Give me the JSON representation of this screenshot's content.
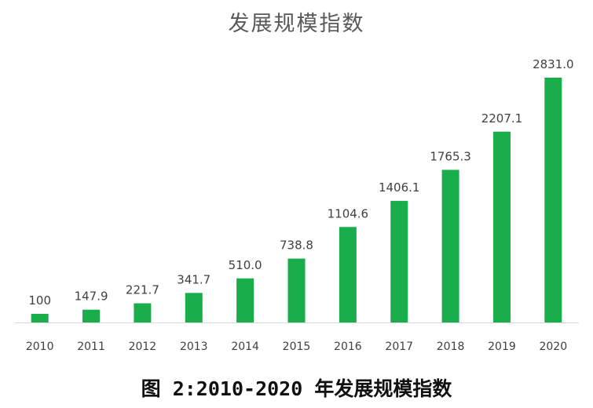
{
  "chart_data": {
    "type": "bar",
    "title": "发展规模指数",
    "categories": [
      "2010",
      "2011",
      "2012",
      "2013",
      "2014",
      "2015",
      "2016",
      "2017",
      "2018",
      "2019",
      "2020"
    ],
    "values": [
      100,
      147.9,
      221.7,
      341.7,
      510.0,
      738.8,
      1104.6,
      1406.1,
      1765.3,
      2207.1,
      2831.0
    ],
    "data_labels": [
      "100",
      "147.9",
      "221.7",
      "341.7",
      "510.0",
      "738.8",
      "1104.6",
      "1406.1",
      "1765.3",
      "2207.1",
      "2831.0"
    ],
    "xlabel": "",
    "ylabel": "",
    "ylim": [
      0,
      2831
    ],
    "grid": false,
    "bar_color": "#1aad4b",
    "axis_color": "#d9d9d9"
  },
  "caption": "图 2:2010-2020 年发展规模指数"
}
